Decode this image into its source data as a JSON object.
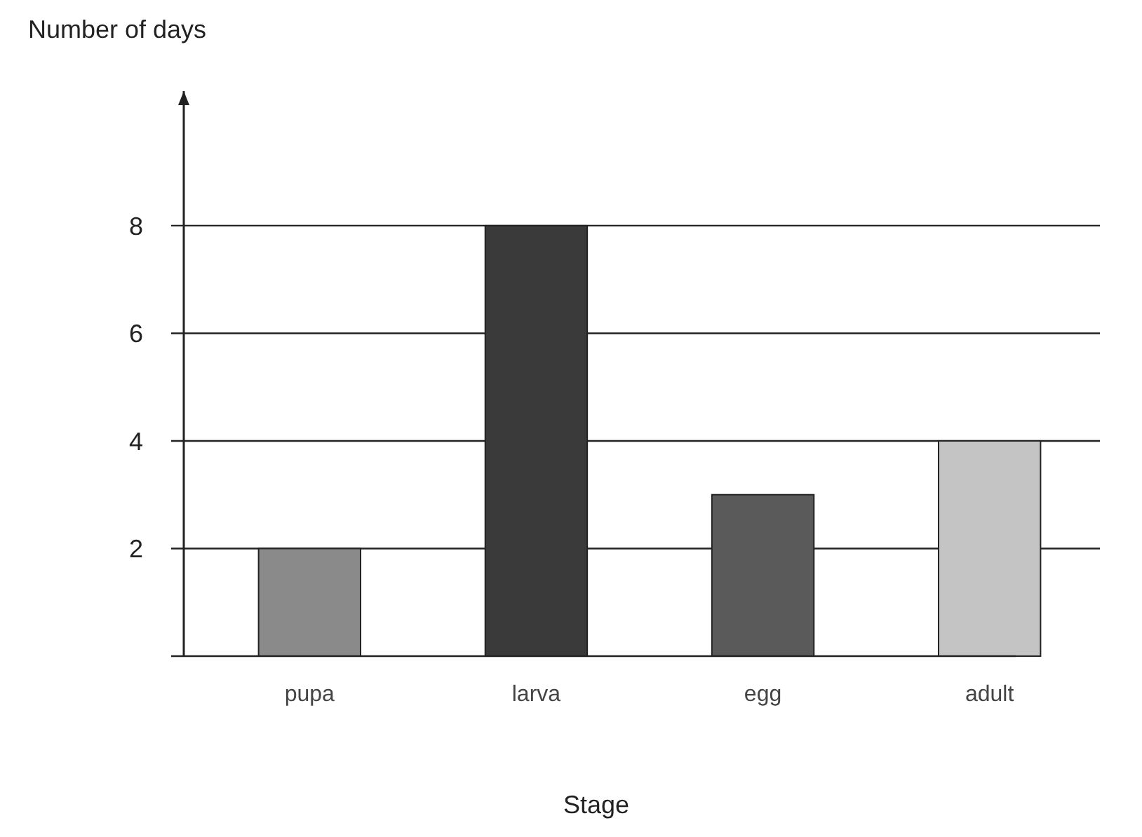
{
  "chart_data": {
    "type": "bar",
    "xlabel": "Stage",
    "ylabel": "Number of days",
    "categories": [
      "pupa",
      "larva",
      "egg",
      "adult"
    ],
    "values": [
      2,
      8,
      3,
      4
    ],
    "colors": [
      "#8a8a8a",
      "#3a3a3a",
      "#5a5a5a",
      "#c4c4c4"
    ],
    "ylim": [
      0,
      10.5
    ],
    "yticks": [
      2,
      4,
      6,
      8
    ],
    "grid": "y"
  }
}
